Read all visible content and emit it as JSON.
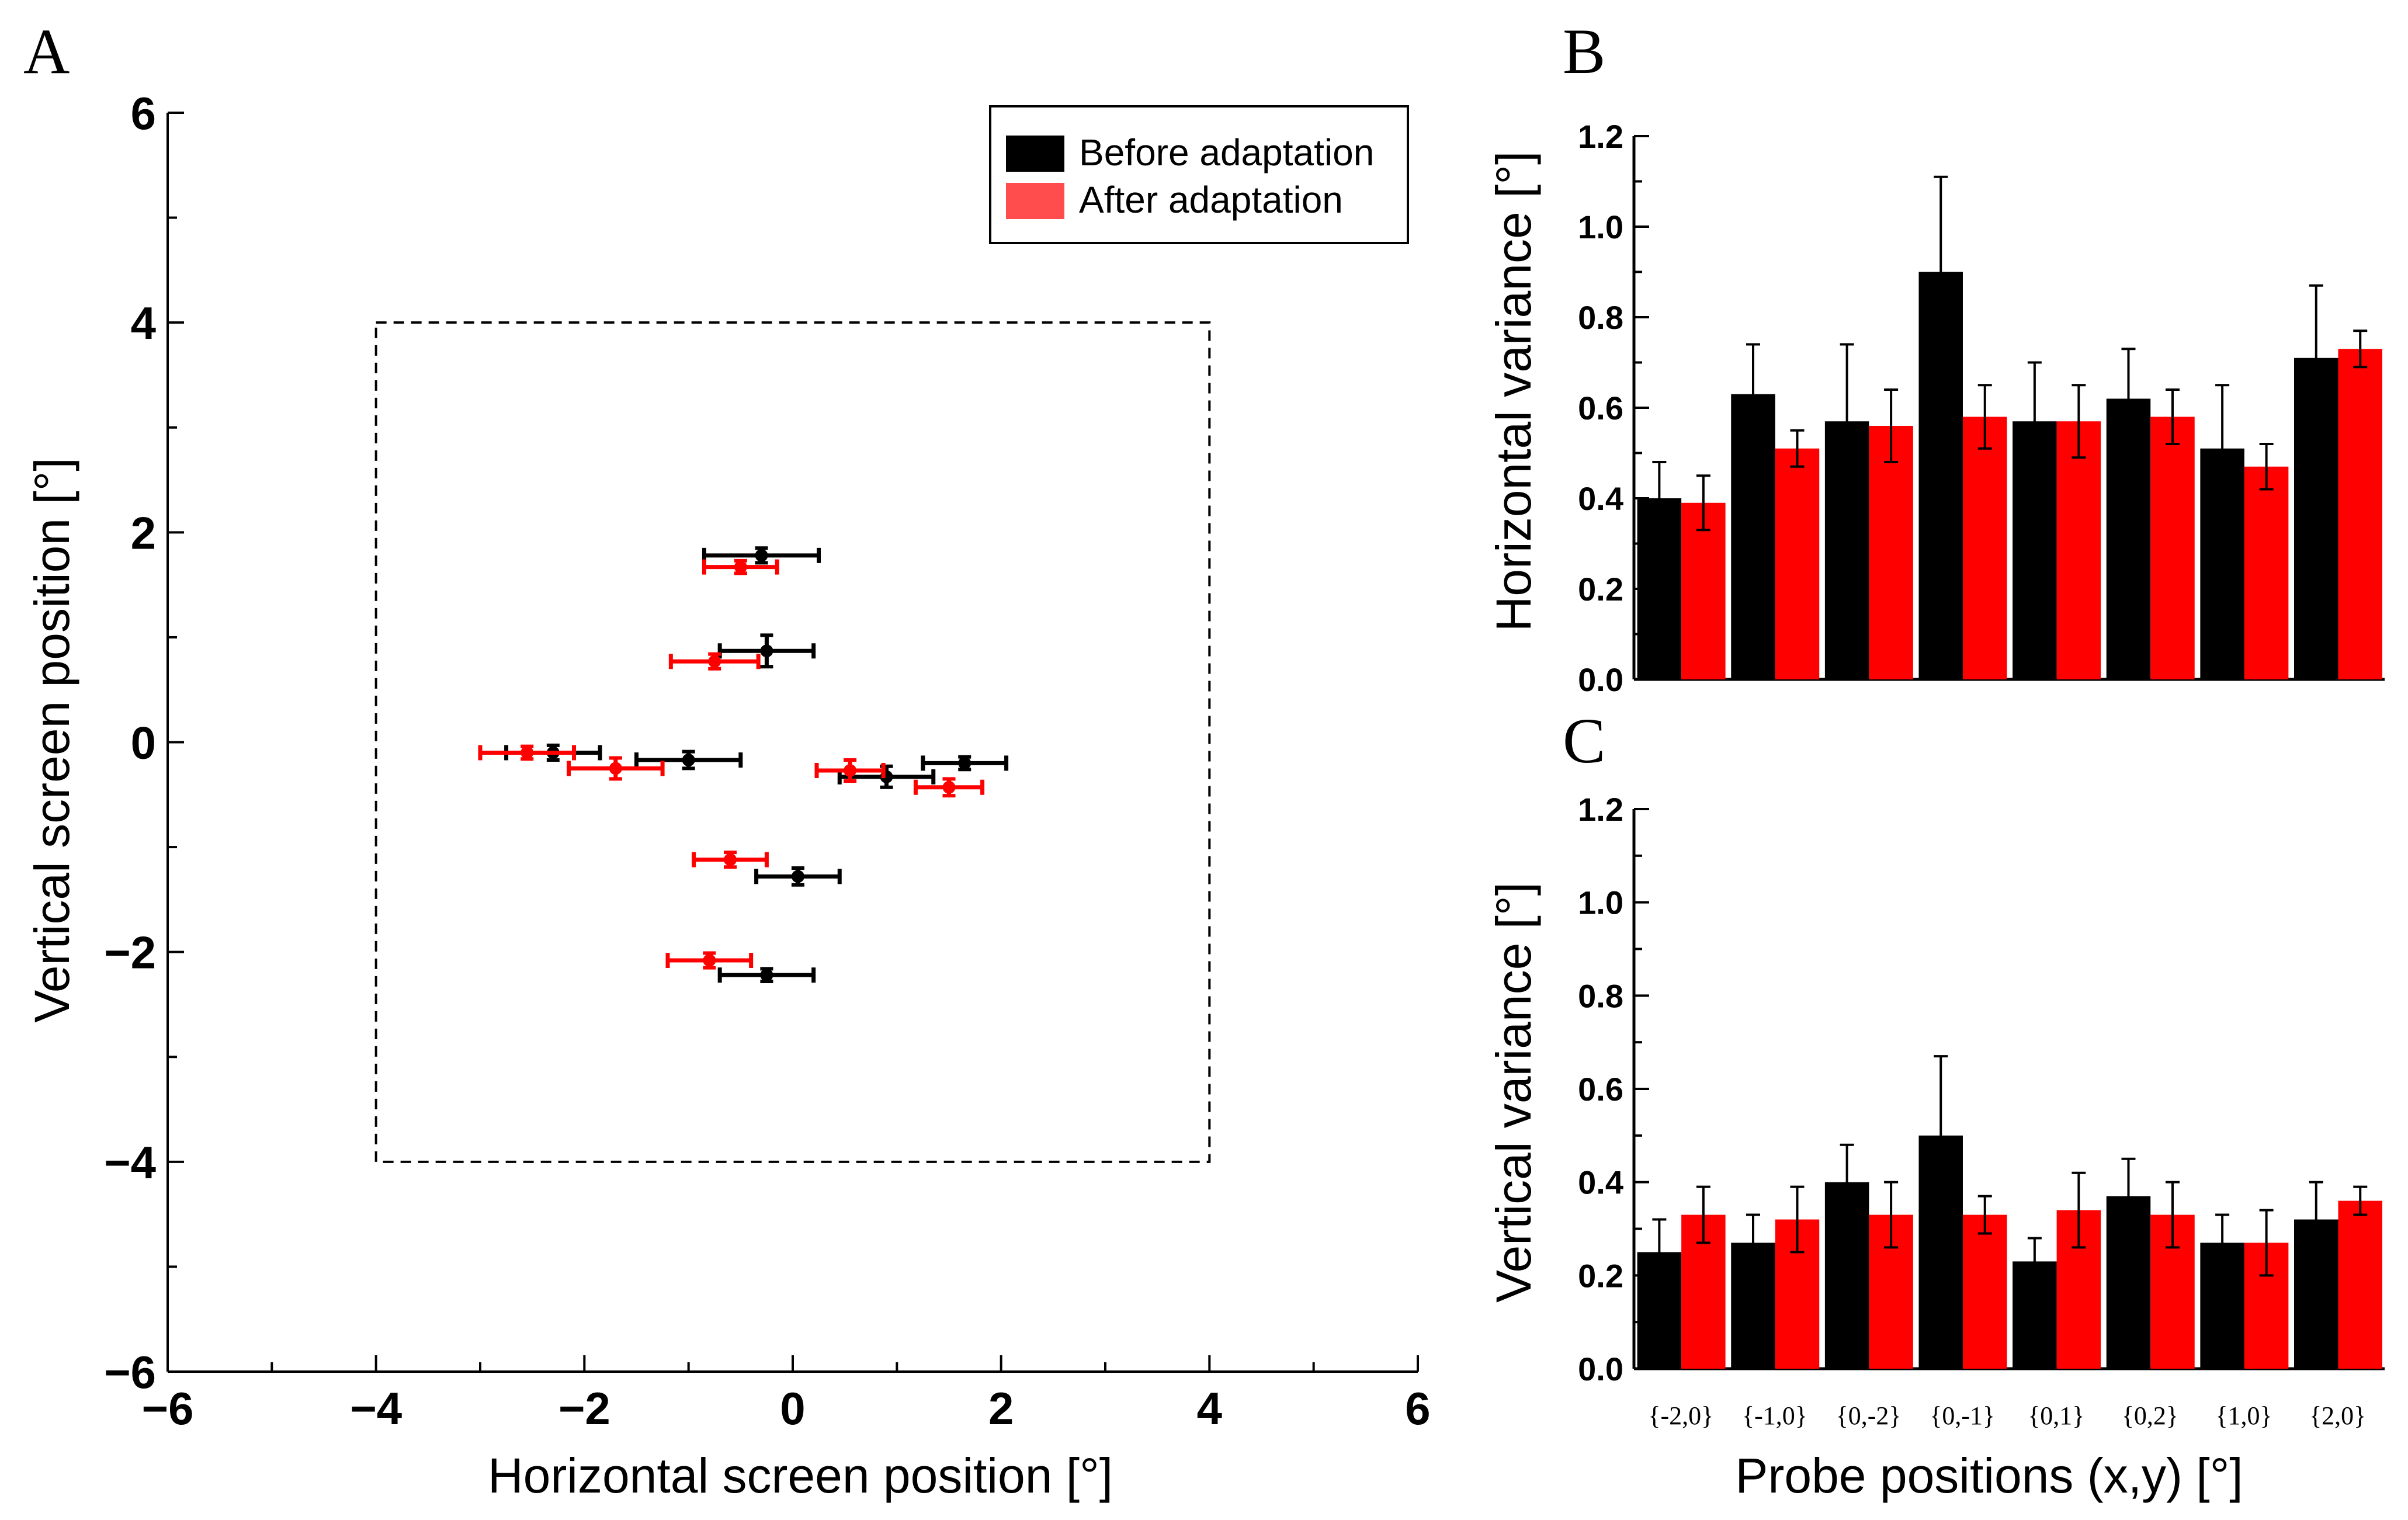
{
  "panel_letters": {
    "a": "A",
    "b": "B",
    "c": "C"
  },
  "legend": {
    "before": "Before adaptation",
    "after": "After adaptation"
  },
  "colors": {
    "before": "#000000",
    "after": "#ff0000",
    "after_legend": "#ff4d4d"
  },
  "chart_data": [
    {
      "id": "A",
      "type": "scatter",
      "title": "",
      "xlabel": "Horizontal screen position [°]",
      "ylabel": "Vertical screen position [°]",
      "xlim": [
        -6,
        6
      ],
      "ylim": [
        -6,
        6
      ],
      "xticks": [
        -6,
        -4,
        -2,
        0,
        2,
        4,
        6
      ],
      "yticks": [
        -6,
        -4,
        -2,
        0,
        2,
        4,
        6
      ],
      "xtick_labels": [
        "−6",
        "−4",
        "−2",
        "0",
        "2",
        "4",
        "6"
      ],
      "ytick_labels": [
        "−6",
        "−4",
        "−2",
        "0",
        "2",
        "4",
        "6"
      ],
      "annotation": "dashed square from (-4,-4) to (4,4)",
      "legend_position": "top-right",
      "series": [
        {
          "name": "Before adaptation",
          "points": [
            {
              "x": -0.3,
              "y": 1.78,
              "xerr": 0.55,
              "yerr": 0.07
            },
            {
              "x": -0.25,
              "y": 0.87,
              "xerr": 0.45,
              "yerr": 0.15
            },
            {
              "x": -2.3,
              "y": -0.1,
              "xerr": 0.45,
              "yerr": 0.07
            },
            {
              "x": -1.0,
              "y": -0.17,
              "xerr": 0.5,
              "yerr": 0.08
            },
            {
              "x": 1.65,
              "y": -0.2,
              "xerr": 0.4,
              "yerr": 0.06
            },
            {
              "x": 0.9,
              "y": -0.33,
              "xerr": 0.45,
              "yerr": 0.1
            },
            {
              "x": 0.05,
              "y": -1.28,
              "xerr": 0.4,
              "yerr": 0.08
            },
            {
              "x": -0.25,
              "y": -2.22,
              "xerr": 0.45,
              "yerr": 0.06
            }
          ]
        },
        {
          "name": "After adaptation",
          "points": [
            {
              "x": -0.5,
              "y": 1.67,
              "xerr": 0.35,
              "yerr": 0.06
            },
            {
              "x": -0.75,
              "y": 0.77,
              "xerr": 0.42,
              "yerr": 0.07
            },
            {
              "x": -2.55,
              "y": -0.1,
              "xerr": 0.45,
              "yerr": 0.06
            },
            {
              "x": -1.7,
              "y": -0.25,
              "xerr": 0.45,
              "yerr": 0.1
            },
            {
              "x": 0.55,
              "y": -0.27,
              "xerr": 0.32,
              "yerr": 0.1
            },
            {
              "x": 1.5,
              "y": -0.43,
              "xerr": 0.32,
              "yerr": 0.08
            },
            {
              "x": -0.6,
              "y": -1.12,
              "xerr": 0.35,
              "yerr": 0.07
            },
            {
              "x": -0.8,
              "y": -2.08,
              "xerr": 0.4,
              "yerr": 0.07
            }
          ]
        }
      ]
    },
    {
      "id": "B",
      "type": "bar",
      "title": "",
      "xlabel": "",
      "ylabel": "Horizontal variance [°]",
      "ylim": [
        0,
        1.2
      ],
      "yticks": [
        0.0,
        0.2,
        0.4,
        0.6,
        0.8,
        1.0,
        1.2
      ],
      "ytick_labels": [
        "0.0",
        "0.2",
        "0.4",
        "0.6",
        "0.8",
        "1.0",
        "1.2"
      ],
      "categories": [
        "{-2,0}",
        "{-1,0}",
        "{0,-2}",
        "{0,-1}",
        "{0,1}",
        "{0,2}",
        "{1,0}",
        "{2,0}"
      ],
      "series": [
        {
          "name": "Before adaptation",
          "values": [
            0.4,
            0.63,
            0.57,
            0.9,
            0.57,
            0.62,
            0.51,
            0.71
          ],
          "errors": [
            0.08,
            0.11,
            0.17,
            0.21,
            0.13,
            0.11,
            0.14,
            0.16
          ]
        },
        {
          "name": "After adaptation",
          "values": [
            0.39,
            0.51,
            0.56,
            0.58,
            0.57,
            0.58,
            0.47,
            0.73
          ],
          "errors": [
            0.06,
            0.04,
            0.08,
            0.07,
            0.08,
            0.06,
            0.05,
            0.04
          ]
        }
      ]
    },
    {
      "id": "C",
      "type": "bar",
      "title": "",
      "xlabel": "Probe positions (x,y) [°]",
      "ylabel": "Vertical variance [°]",
      "ylim": [
        0,
        1.2
      ],
      "yticks": [
        0.0,
        0.2,
        0.4,
        0.6,
        0.8,
        1.0,
        1.2
      ],
      "ytick_labels": [
        "0.0",
        "0.2",
        "0.4",
        "0.6",
        "0.8",
        "1.0",
        "1.2"
      ],
      "categories": [
        "{-2,0}",
        "{-1,0}",
        "{0,-2}",
        "{0,-1}",
        "{0,1}",
        "{0,2}",
        "{1,0}",
        "{2,0}"
      ],
      "series": [
        {
          "name": "Before adaptation",
          "values": [
            0.25,
            0.27,
            0.4,
            0.5,
            0.23,
            0.37,
            0.27,
            0.32
          ],
          "errors": [
            0.07,
            0.06,
            0.08,
            0.17,
            0.05,
            0.08,
            0.06,
            0.08
          ]
        },
        {
          "name": "After adaptation",
          "values": [
            0.33,
            0.32,
            0.33,
            0.33,
            0.34,
            0.33,
            0.27,
            0.36
          ],
          "errors": [
            0.06,
            0.07,
            0.07,
            0.04,
            0.08,
            0.07,
            0.07,
            0.03
          ]
        }
      ]
    }
  ]
}
